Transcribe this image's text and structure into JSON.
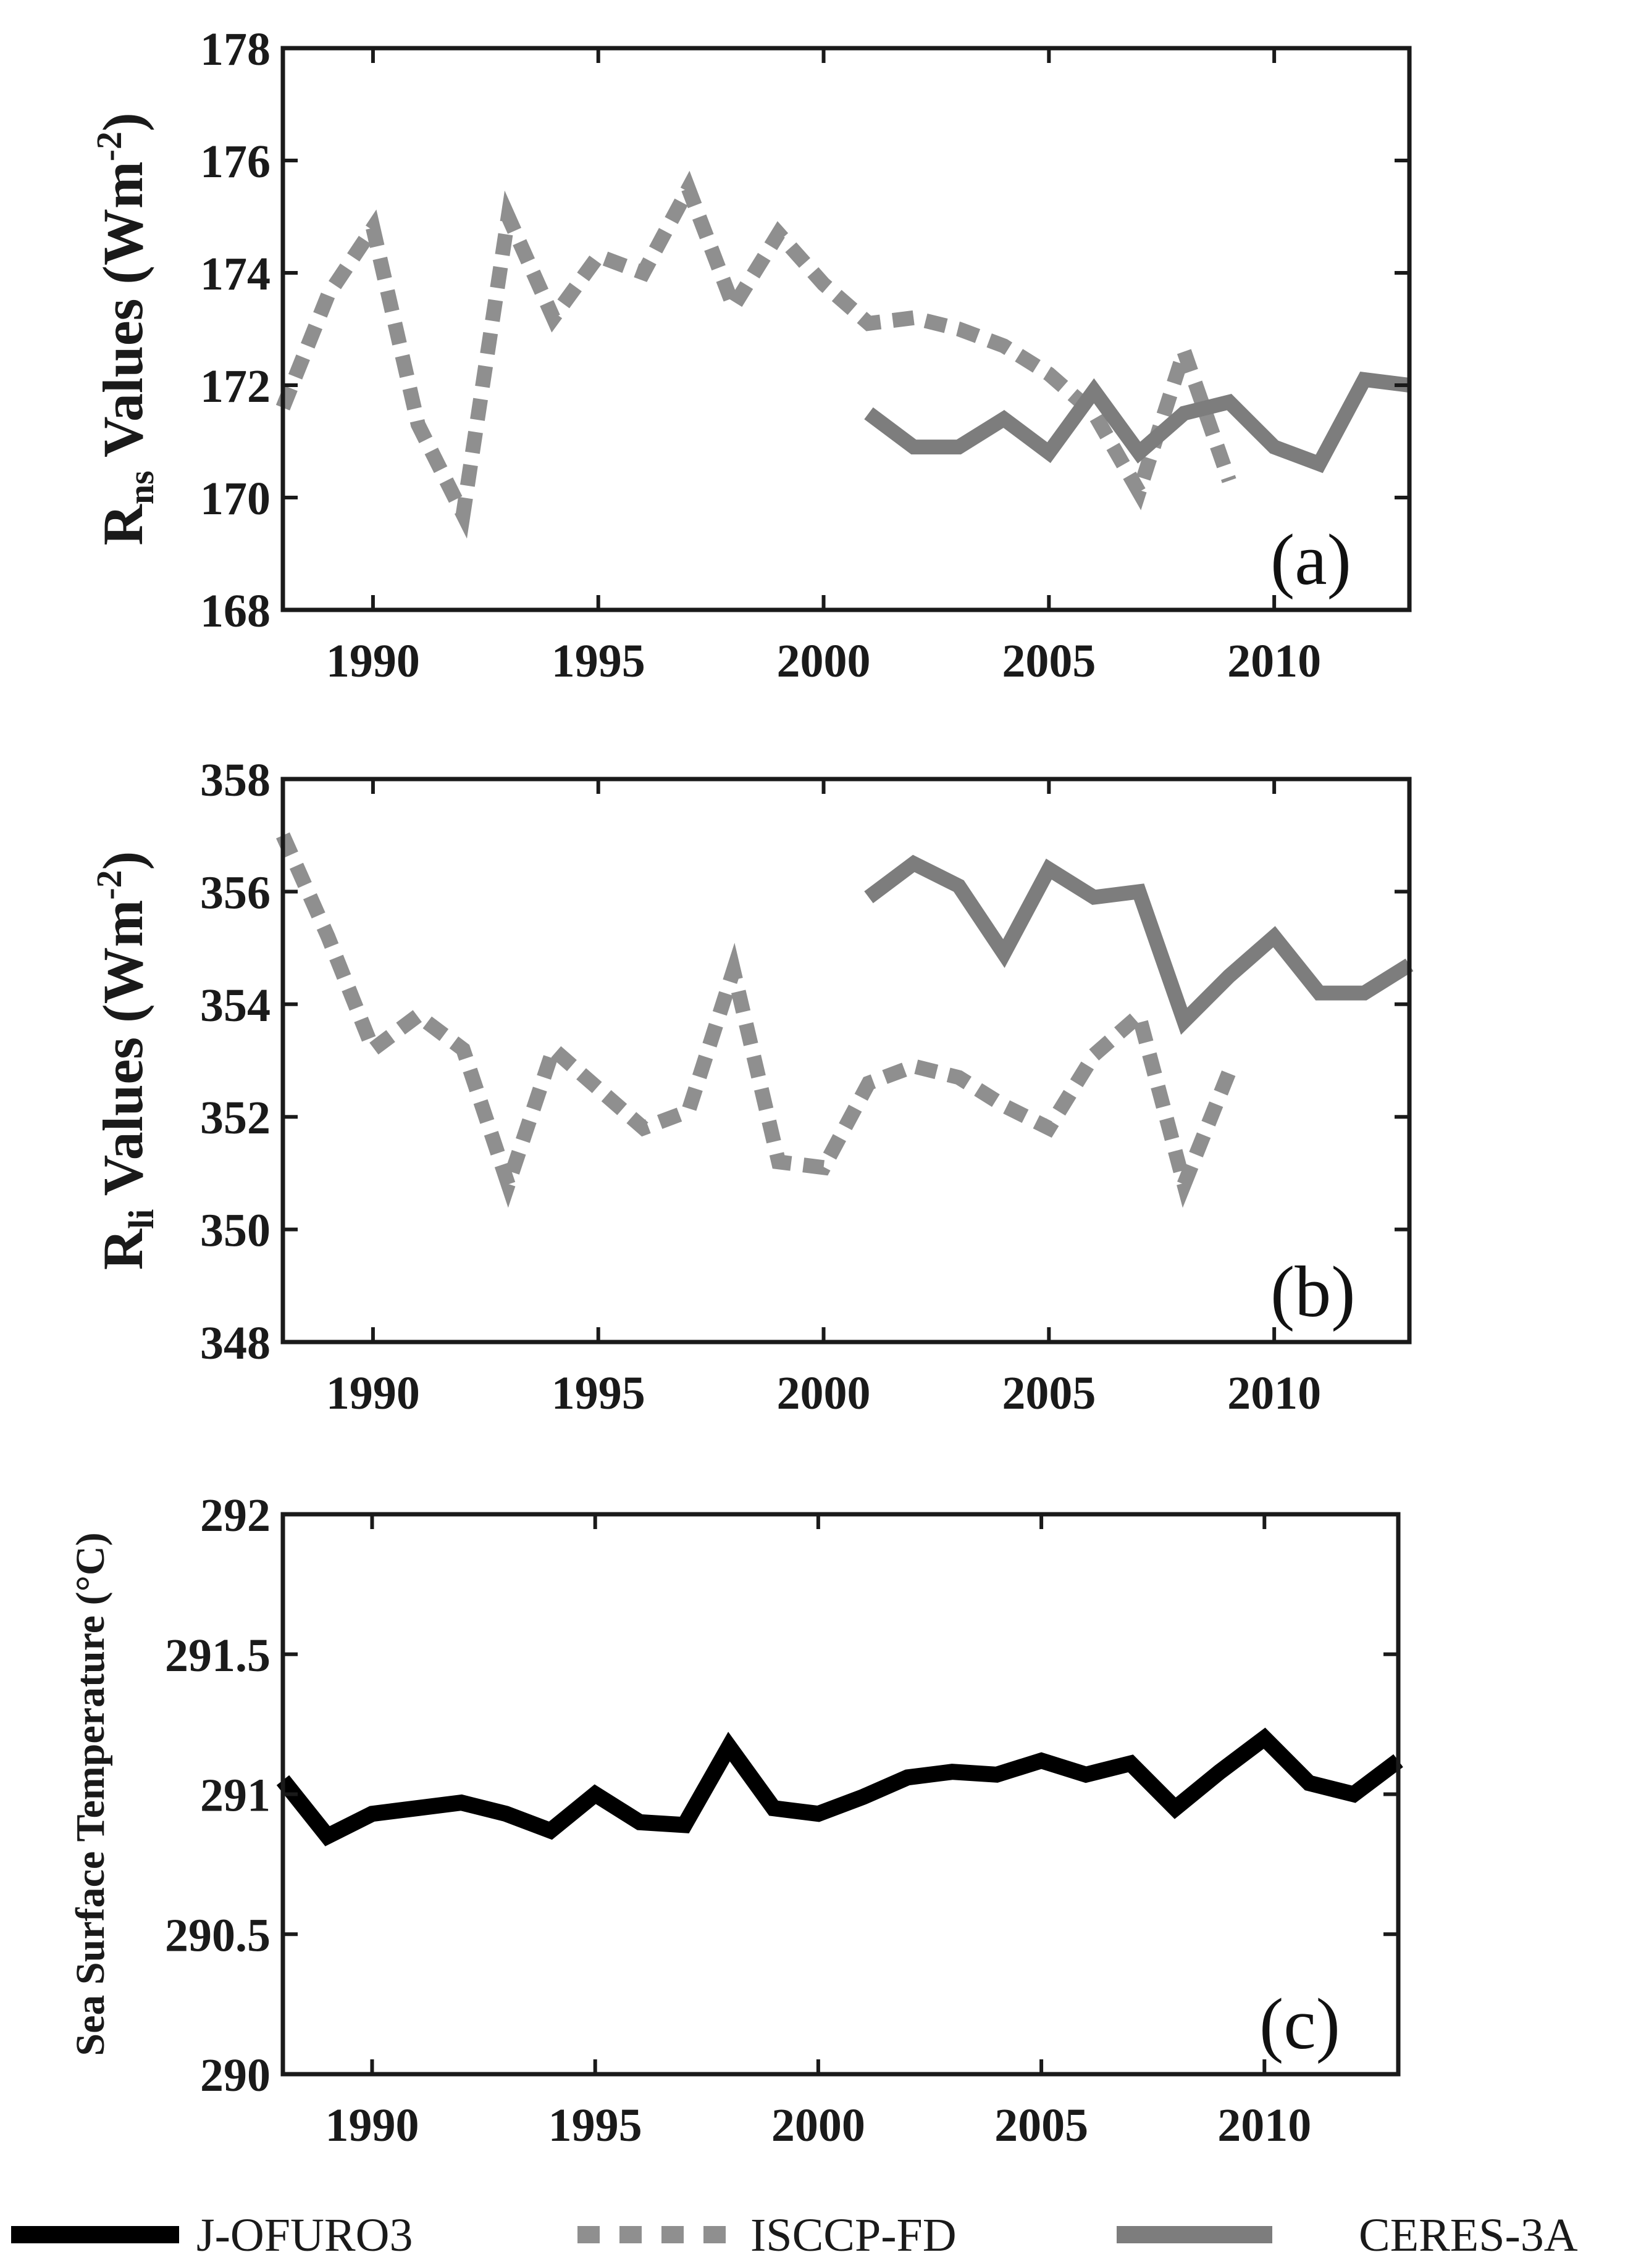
{
  "colors": {
    "jofuro": "#000000",
    "isccp": "#8f8f8f",
    "ceres": "#7d7d7d",
    "axis": "#1a1a1a"
  },
  "legend": [
    {
      "label": "J-OFURO3",
      "key": "jofuro",
      "style": "solid"
    },
    {
      "label": "ISCCP-FD",
      "key": "isccp",
      "style": "dashed"
    },
    {
      "label": "CERES-3A",
      "key": "ceres",
      "style": "solid"
    }
  ],
  "chart_data": [
    {
      "type": "line",
      "panel_label": "(a)",
      "ylabel_main": "R",
      "ylabel_sub": "ns",
      "ylabel_rest": " Values (Wm",
      "ylabel_sup": "-2",
      "ylabel_end": ")",
      "xlim": [
        1988,
        2013
      ],
      "ylim": [
        168,
        178
      ],
      "xticks": [
        1990,
        1995,
        2000,
        2005,
        2010
      ],
      "yticks": [
        168,
        170,
        172,
        174,
        176,
        178
      ],
      "series": [
        {
          "name": "ISCCP-FD",
          "key": "isccp",
          "style": "dashed",
          "x": [
            1988,
            1989,
            1990,
            1991,
            1992,
            1993,
            1994,
            1995,
            1996,
            1997,
            1998,
            1999,
            2000,
            2001,
            2002,
            2003,
            2004,
            2005,
            2006,
            2007,
            2008,
            2009
          ],
          "y": [
            171.6,
            173.6,
            174.8,
            171.3,
            169.7,
            175.0,
            173.2,
            174.3,
            174.0,
            175.5,
            173.4,
            174.7,
            173.8,
            173.1,
            173.2,
            173.0,
            172.7,
            172.2,
            171.5,
            170.1,
            172.6,
            170.3
          ]
        },
        {
          "name": "CERES-3A",
          "key": "ceres",
          "style": "solid",
          "x": [
            2001,
            2002,
            2003,
            2004,
            2005,
            2006,
            2007,
            2008,
            2009,
            2010,
            2011,
            2012,
            2013
          ],
          "y": [
            171.5,
            170.9,
            170.9,
            171.4,
            170.8,
            171.9,
            170.8,
            171.5,
            171.7,
            170.9,
            170.6,
            172.1,
            172.0
          ]
        }
      ]
    },
    {
      "type": "line",
      "panel_label": "(b)",
      "ylabel_main": "R",
      "ylabel_sub": "li",
      "ylabel_rest": " Values (Wm",
      "ylabel_sup": "-2",
      "ylabel_end": ")",
      "xlim": [
        1988,
        2013
      ],
      "ylim": [
        348,
        358
      ],
      "xticks": [
        1990,
        1995,
        2000,
        2005,
        2010
      ],
      "yticks": [
        348,
        350,
        352,
        354,
        356,
        358
      ],
      "series": [
        {
          "name": "ISCCP-FD",
          "key": "isccp",
          "style": "dashed",
          "x": [
            1988,
            1989,
            1990,
            1991,
            1992,
            1993,
            1994,
            1995,
            1996,
            1997,
            1998,
            1999,
            2000,
            2001,
            2002,
            2003,
            2004,
            2005,
            2006,
            2007,
            2008,
            2009
          ],
          "y": [
            357.0,
            355.2,
            353.2,
            353.8,
            353.2,
            350.8,
            353.2,
            352.5,
            351.8,
            352.1,
            354.6,
            351.2,
            351.1,
            352.6,
            352.9,
            352.7,
            352.2,
            351.8,
            353.1,
            353.8,
            350.8,
            352.8
          ]
        },
        {
          "name": "CERES-3A",
          "key": "ceres",
          "style": "solid",
          "x": [
            2001,
            2002,
            2003,
            2004,
            2005,
            2006,
            2007,
            2008,
            2009,
            2010,
            2011,
            2012,
            2013
          ],
          "y": [
            355.9,
            356.5,
            356.1,
            354.9,
            356.4,
            355.9,
            356.0,
            353.7,
            354.5,
            355.2,
            354.2,
            354.2,
            354.7
          ]
        }
      ]
    },
    {
      "type": "line",
      "panel_label": "(c)",
      "ylabel_main": "Sea Surface Temperature (°C)",
      "ylabel_sub": "",
      "ylabel_rest": "",
      "ylabel_sup": "",
      "ylabel_end": "",
      "xlim": [
        1988,
        2013
      ],
      "ylim": [
        290,
        292
      ],
      "xticks": [
        1990,
        1995,
        2000,
        2005,
        2010
      ],
      "yticks": [
        290,
        290.5,
        291,
        291.5,
        292
      ],
      "series": [
        {
          "name": "J-OFURO3",
          "key": "jofuro",
          "style": "solid",
          "x": [
            1988,
            1989,
            1990,
            1991,
            1992,
            1993,
            1994,
            1995,
            1996,
            1997,
            1998,
            1999,
            2000,
            2001,
            2002,
            2003,
            2004,
            2005,
            2006,
            2007,
            2008,
            2009,
            2010,
            2011,
            2012,
            2013
          ],
          "y": [
            291.05,
            290.85,
            290.93,
            290.95,
            290.97,
            290.93,
            290.87,
            291.0,
            290.9,
            290.89,
            291.17,
            290.95,
            290.93,
            290.99,
            291.06,
            291.08,
            291.07,
            291.12,
            291.07,
            291.11,
            290.95,
            291.08,
            291.2,
            291.04,
            291.0,
            291.12
          ]
        }
      ]
    }
  ]
}
